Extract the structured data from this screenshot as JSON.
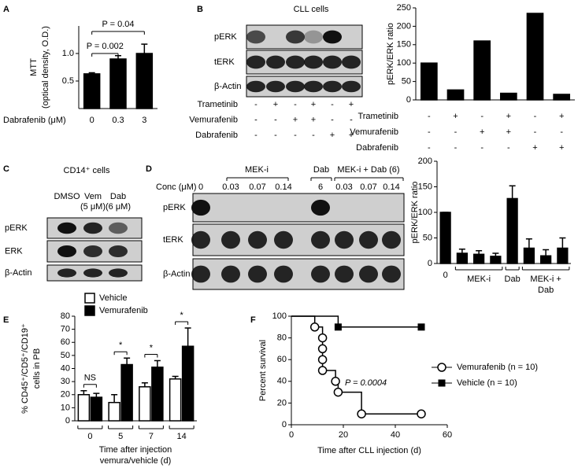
{
  "panel_labels": [
    "A",
    "B",
    "C",
    "D",
    "E",
    "F"
  ],
  "blots": {
    "B": {
      "title": "CLL cells",
      "rows": [
        "pERK",
        "tERK",
        "β-Actin"
      ],
      "treatments": [
        {
          "name": "Trametinib",
          "signs": [
            "-",
            "+",
            "-",
            "+",
            "-",
            "+"
          ]
        },
        {
          "name": "Vemurafenib",
          "signs": [
            "-",
            "-",
            "+",
            "+",
            "-",
            "-"
          ]
        },
        {
          "name": "Dabrafenib",
          "signs": [
            "-",
            "-",
            "-",
            "-",
            "+",
            "+"
          ]
        }
      ]
    },
    "C": {
      "title": "CD14⁺ cells",
      "lanes": [
        [
          "DMSO"
        ],
        [
          "Vem",
          "(5 μM)"
        ],
        [
          "Dab",
          "(6 μM)"
        ]
      ],
      "rows": [
        "pERK",
        "ERK",
        "β-Actin"
      ]
    },
    "D": {
      "groups": [
        "MEK-i",
        "Dab",
        "MEK-i + Dab (6)"
      ],
      "conc_label": "Conc (μM)",
      "concentrations": [
        "0",
        "0.03",
        "0.07",
        "0.14",
        "6",
        "0.03",
        "0.07",
        "0.14"
      ],
      "rows": [
        "pERK",
        "tERK",
        "β-Actin"
      ]
    }
  },
  "chart_data": [
    {
      "type": "bar",
      "ylabel": [
        "MTT",
        "(optical density, O.D.)"
      ],
      "xlabel": "Dabrafenib (μM)",
      "categories": [
        "0",
        "0.3",
        "3"
      ],
      "values": [
        0.63,
        0.9,
        1.0
      ],
      "errors": [
        0.02,
        0.06,
        0.17
      ],
      "color": "#000000",
      "ylim": [
        0,
        1.5
      ],
      "yticks": [
        0.5,
        {
          "value": 1,
          "label": "1.0"
        }
      ],
      "annotations": [
        "P = 0.002",
        "P = 0.04"
      ]
    },
    {
      "type": "bar",
      "ylabel": [
        "pERK/ERK ratio"
      ],
      "categories": [
        null,
        null,
        null,
        null,
        null,
        null
      ],
      "values": [
        100,
        27,
        160,
        18,
        235,
        15
      ],
      "color": "#000000",
      "ylim": [
        0,
        250
      ],
      "yticks": [
        0,
        50,
        100,
        150,
        200,
        250
      ],
      "treatments": [
        {
          "name": "Trametinib",
          "signs": [
            "-",
            "+",
            "-",
            "+",
            "-",
            "+"
          ]
        },
        {
          "name": "Vemurafenib",
          "signs": [
            "-",
            "-",
            "+",
            "+",
            "-",
            "-"
          ]
        },
        {
          "name": "Dabrafenib",
          "signs": [
            "-",
            "-",
            "-",
            "-",
            "+",
            "+"
          ]
        }
      ]
    },
    {
      "type": "bar",
      "ylabel": [
        "pERK/ERK ratio"
      ],
      "categories": [
        "0",
        null,
        null,
        null,
        null,
        null,
        null,
        null
      ],
      "groups": [
        [
          "MEK-i"
        ],
        [
          "Dab"
        ],
        [
          "MEK-i +",
          "Dab"
        ]
      ],
      "values": [
        100,
        20,
        18,
        14,
        127,
        30,
        15,
        30
      ],
      "errors": [
        0,
        8,
        7,
        6,
        25,
        18,
        12,
        20
      ],
      "color": "#000000",
      "ylim": [
        0,
        200
      ],
      "yticks": [
        0,
        50,
        100,
        150,
        200
      ]
    },
    {
      "type": "bar",
      "ylabel": [
        "% CD45⁺/CD5⁺/CD19⁺",
        "cells in PB"
      ],
      "xlabel": [
        "Time after injection",
        "vemura/vehicle (d)"
      ],
      "categories": [
        "0",
        "5",
        "7",
        "14"
      ],
      "series": [
        {
          "name": "Vehicle",
          "color": "#ffffff",
          "values": [
            20,
            14,
            26,
            32
          ],
          "errors": [
            3,
            6,
            3,
            2
          ]
        },
        {
          "name": "Vemurafenib",
          "color": "#000000",
          "values": [
            18,
            43,
            41,
            57
          ],
          "errors": [
            3,
            5,
            5,
            14
          ]
        }
      ],
      "ylim": [
        0,
        80
      ],
      "yticks": [
        0,
        10,
        20,
        30,
        40,
        50,
        60,
        70,
        80
      ],
      "annotations": [
        "NS",
        "*",
        "*",
        "*"
      ]
    },
    {
      "type": "survival",
      "xlabel": "Time after CLL injection (d)",
      "ylabel": [
        "Percent survival"
      ],
      "series": [
        {
          "name": "Vemurafenib (n = 10)",
          "color": "#000000",
          "marker": "open-circle",
          "x": [
            0,
            9,
            12,
            12,
            12,
            12,
            17,
            18,
            27,
            50
          ],
          "values": [
            100,
            90,
            80,
            70,
            60,
            50,
            40,
            30,
            10,
            10
          ]
        },
        {
          "name": "Vehicle (n = 10)",
          "color": "#000000",
          "marker": "square",
          "x": [
            0,
            18,
            50
          ],
          "values": [
            100,
            90,
            90
          ]
        }
      ],
      "xlim": [
        0,
        60
      ],
      "xticks": [
        0,
        20,
        40,
        60
      ],
      "ylim": [
        0,
        100
      ],
      "yticks": [
        0,
        20,
        40,
        60,
        80,
        100
      ],
      "annotations": [
        "P = 0.0004"
      ]
    }
  ]
}
